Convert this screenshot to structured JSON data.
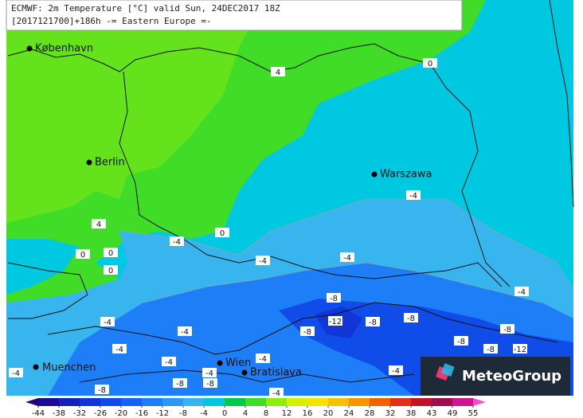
{
  "header": {
    "line1": "ECMWF: 2m Temperature [°C] valid Sun, 24DEC2017 18Z",
    "line2": "[2017121700]+186h -= Eastern Europe =-"
  },
  "cities": [
    "København",
    "Berlin",
    "Warszawa",
    "Muenchen",
    "Wien",
    "Bratislava"
  ],
  "contour_labels": [
    0,
    4,
    4,
    0,
    0,
    0,
    0,
    -4,
    -4,
    -4,
    -4,
    -4,
    -8,
    -12,
    -8,
    -8,
    -8,
    -4,
    -4,
    -4,
    -4,
    -4,
    -4,
    -4,
    -8,
    -8,
    -8,
    -4,
    -8,
    -8,
    -8,
    -12,
    -4
  ],
  "colorbar": {
    "ticks": [
      -44,
      -38,
      -32,
      -26,
      -20,
      -16,
      -12,
      -8,
      -4,
      0,
      4,
      8,
      12,
      16,
      20,
      24,
      28,
      32,
      38,
      43,
      49,
      55
    ],
    "colors": [
      "#24046e",
      "#1a0c96",
      "#1420b8",
      "#1236d6",
      "#104ce8",
      "#1464f4",
      "#1e7ef8",
      "#2a98f4",
      "#38b4ee",
      "#00c8e0",
      "#00c84a",
      "#40dc28",
      "#90ec10",
      "#d0f400",
      "#f4e400",
      "#f8c000",
      "#f89400",
      "#f06400",
      "#e03018",
      "#c01428",
      "#a00c50",
      "#d0148c",
      "#f050c8"
    ]
  },
  "logo": "MeteoGroup"
}
